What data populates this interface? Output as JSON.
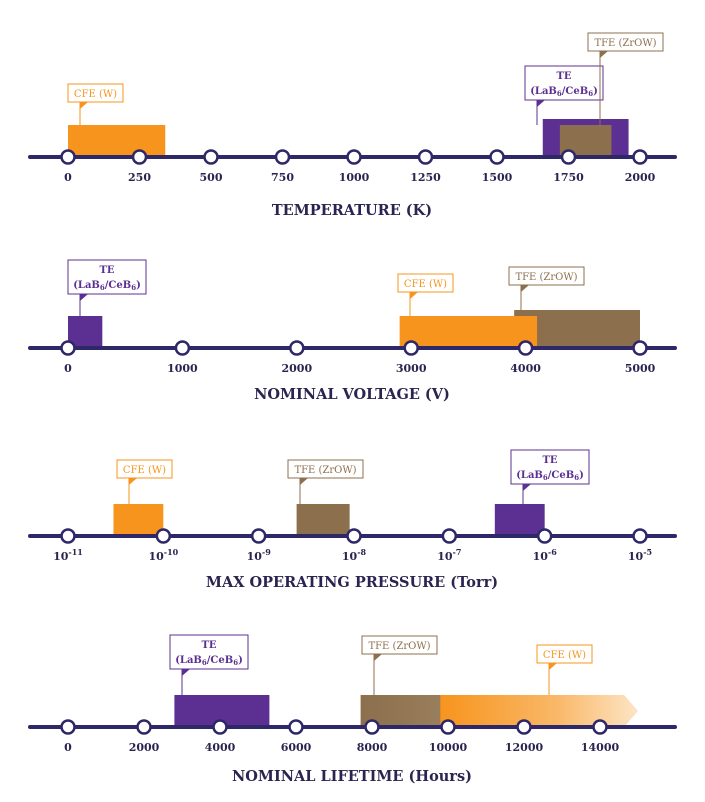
{
  "colors": {
    "axis": "#2e2868",
    "cfe": "#f7941d",
    "te": "#5b3092",
    "tfe": "#8c6f4c",
    "text": "#2b2450"
  },
  "chart_data": [
    {
      "type": "bar",
      "title": "TEMPERATURE (K)",
      "scale": "linear",
      "ticks": [
        "0",
        "250",
        "500",
        "750",
        "1000",
        "1250",
        "1500",
        "1750",
        "2000"
      ],
      "range": [
        0,
        2000
      ],
      "series": [
        {
          "name": "CFE (W)",
          "start": 0,
          "end": 340,
          "label_at": 0
        },
        {
          "name": "TE (LaB6/CeB6)",
          "label_html": "TE|(LaB<sub>6</sub>/CeB<sub>6</sub>)",
          "start": 1660,
          "end": 1960,
          "label_at": 1660
        },
        {
          "name": "TFE (ZrOW)",
          "start": 1720,
          "end": 1900,
          "label_at": 1770
        }
      ]
    },
    {
      "type": "bar",
      "title": "NOMINAL VOLTAGE (V)",
      "scale": "linear",
      "ticks": [
        "0",
        "1000",
        "2000",
        "3000",
        "4000",
        "5000"
      ],
      "range": [
        0,
        5000
      ],
      "series": [
        {
          "name": "TE (LaB6/CeB6)",
          "start": 0,
          "end": 300,
          "label_at": 0
        },
        {
          "name": "TFE (ZrOW)",
          "start": 3900,
          "end": 5000,
          "label_at": 4000
        },
        {
          "name": "CFE (W)",
          "start": 2900,
          "end": 4100,
          "label_at": 2900
        }
      ]
    },
    {
      "type": "bar",
      "title": "MAX OPERATING PRESSURE (Torr)",
      "scale": "log",
      "ticks": [
        "10-11",
        "10-10",
        "10-9",
        "10-8",
        "10-7",
        "10-6",
        "10-5"
      ],
      "range": [
        1e-11,
        1e-05
      ],
      "series": [
        {
          "name": "CFE (W)",
          "start": 3e-11,
          "end": 1e-10,
          "label_at": 5e-11
        },
        {
          "name": "TFE (ZrOW)",
          "start": 2.5e-09,
          "end": 9e-09,
          "label_at": 2.7e-09
        },
        {
          "name": "TE (LaB6/CeB6)",
          "start": 3e-07,
          "end": 1e-06,
          "label_at": 5e-07
        }
      ]
    },
    {
      "type": "bar",
      "title": "NOMINAL LIFETIME (Hours)",
      "scale": "linear",
      "ticks": [
        "0",
        "2000",
        "4000",
        "6000",
        "8000",
        "10000",
        "12000",
        "14000"
      ],
      "range": [
        0,
        14000
      ],
      "series": [
        {
          "name": "TE (LaB6/CeB6)",
          "start": 2800,
          "end": 5300,
          "label_at": 3000
        },
        {
          "name": "TFE (ZrOW)",
          "start": 7700,
          "end": 13500,
          "label_at": 7700,
          "open_ended": true
        },
        {
          "name": "CFE (W)",
          "start": 9800,
          "end": 15000,
          "label_at": 14000,
          "open_ended": true
        }
      ]
    }
  ]
}
